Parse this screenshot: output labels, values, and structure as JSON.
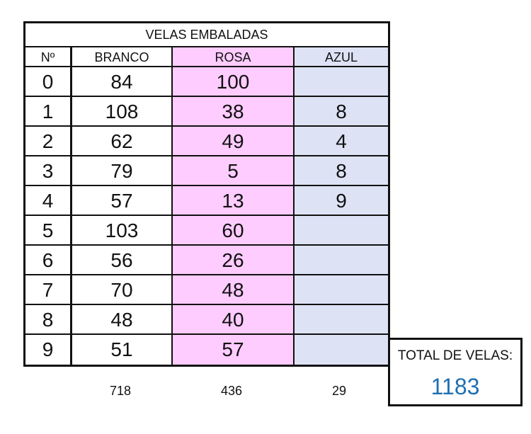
{
  "table": {
    "title": "VELAS EMBALADAS",
    "headers": [
      "Nº",
      "BRANCO",
      "ROSA",
      "AZUL"
    ],
    "rows": [
      {
        "no": "0",
        "branco": "84",
        "rosa": "100",
        "azul": ""
      },
      {
        "no": "1",
        "branco": "108",
        "rosa": "38",
        "azul": "8"
      },
      {
        "no": "2",
        "branco": "62",
        "rosa": "49",
        "azul": "4"
      },
      {
        "no": "3",
        "branco": "79",
        "rosa": "5",
        "azul": "8"
      },
      {
        "no": "4",
        "branco": "57",
        "rosa": "13",
        "azul": "9"
      },
      {
        "no": "5",
        "branco": "103",
        "rosa": "60",
        "azul": ""
      },
      {
        "no": "6",
        "branco": "56",
        "rosa": "26",
        "azul": ""
      },
      {
        "no": "7",
        "branco": "70",
        "rosa": "48",
        "azul": ""
      },
      {
        "no": "8",
        "branco": "48",
        "rosa": "40",
        "azul": ""
      },
      {
        "no": "9",
        "branco": "51",
        "rosa": "57",
        "azul": ""
      }
    ]
  },
  "column_totals": {
    "branco": "718",
    "rosa": "436",
    "azul": "29"
  },
  "grand_total": {
    "label": "TOTAL DE VELAS:",
    "value": "1183"
  },
  "colors": {
    "rosa_fill": "#ffccff",
    "azul_fill": "#dde3f5",
    "total_value": "#1f6fb2"
  }
}
